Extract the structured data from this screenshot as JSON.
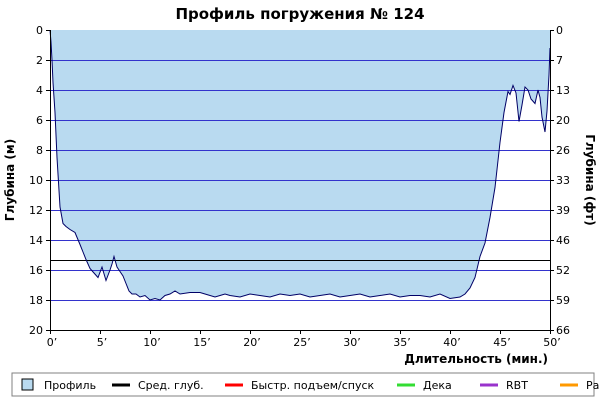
{
  "chart_data": {
    "type": "area",
    "title": "Профиль погружения № 124",
    "xlabel": "Длительность (мин.)",
    "ylabel_left": "Глубина (м)",
    "ylabel_right": "Глубина (фт)",
    "xlim": [
      0,
      50
    ],
    "ylim": [
      0,
      20
    ],
    "y_inverted": true,
    "x_ticks": [
      0,
      5,
      10,
      15,
      20,
      25,
      30,
      35,
      40,
      45,
      50
    ],
    "x_tick_labels": [
      "0’",
      "5’",
      "10’",
      "15’",
      "20’",
      "25’",
      "30’",
      "35’",
      "40’",
      "45’",
      "50’"
    ],
    "y_ticks": [
      0,
      2,
      4,
      6,
      8,
      10,
      12,
      14,
      16,
      18,
      20
    ],
    "y_tick_labels": [
      "0",
      "2",
      "4",
      "6",
      "8",
      "10",
      "12",
      "14",
      "16",
      "18",
      "20"
    ],
    "y_right_tick_labels": [
      "0",
      "7",
      "13",
      "20",
      "26",
      "33",
      "39",
      "46",
      "52",
      "59",
      "66"
    ],
    "grid": true,
    "average_depth": 15.35,
    "colors": {
      "profile_fill": "#b9daf0",
      "profile_line": "#000066",
      "grid": "#3333cc",
      "average": "#000000"
    },
    "series": [
      {
        "name": "Профиль",
        "x": [
          0,
          0.1,
          0.2,
          0.3,
          0.5,
          0.7,
          1.0,
          1.3,
          1.6,
          2.0,
          2.5,
          3.0,
          3.3,
          3.6,
          4.0,
          4.4,
          4.8,
          5.2,
          5.6,
          6.0,
          6.2,
          6.4,
          6.7,
          7.0,
          7.3,
          7.6,
          7.9,
          8.2,
          8.6,
          9.0,
          9.5,
          10.0,
          10.5,
          11.0,
          11.5,
          12.0,
          12.5,
          13.0,
          14.0,
          15.0,
          15.5,
          16.5,
          17.0,
          17.5,
          18.0,
          19.0,
          20.0,
          21.0,
          22.0,
          23.0,
          24.0,
          25.0,
          26.0,
          27.0,
          28.0,
          29.0,
          30.0,
          31.0,
          32.0,
          33.0,
          34.0,
          35.0,
          36.0,
          37.0,
          38.0,
          39.0,
          40.0,
          41.0,
          41.5,
          42.0,
          42.5,
          43.0,
          43.5,
          44.0,
          44.5,
          45.0,
          45.4,
          45.8,
          46.0,
          46.3,
          46.6,
          46.9,
          47.2,
          47.5,
          47.8,
          48.1,
          48.5,
          48.8,
          49.0,
          49.2,
          49.5,
          49.7,
          49.9,
          50.0
        ],
        "depth": [
          0,
          0.8,
          2.0,
          3.5,
          5.5,
          8.5,
          11.8,
          12.9,
          13.1,
          13.3,
          13.5,
          14.3,
          14.8,
          15.3,
          15.9,
          16.2,
          16.5,
          15.8,
          16.7,
          16.0,
          15.6,
          15.1,
          15.8,
          16.1,
          16.4,
          16.9,
          17.4,
          17.6,
          17.6,
          17.8,
          17.7,
          18.0,
          17.9,
          18.0,
          17.7,
          17.6,
          17.4,
          17.6,
          17.5,
          17.5,
          17.6,
          17.8,
          17.7,
          17.6,
          17.7,
          17.8,
          17.6,
          17.7,
          17.8,
          17.6,
          17.7,
          17.6,
          17.8,
          17.7,
          17.6,
          17.8,
          17.7,
          17.6,
          17.8,
          17.7,
          17.6,
          17.8,
          17.7,
          17.7,
          17.8,
          17.6,
          17.9,
          17.8,
          17.6,
          17.2,
          16.5,
          15.1,
          14.2,
          12.5,
          10.5,
          7.5,
          5.5,
          4.1,
          4.3,
          3.7,
          4.2,
          6.1,
          5.0,
          3.8,
          4.0,
          4.6,
          4.9,
          4.0,
          4.5,
          5.8,
          6.8,
          5.4,
          3.0,
          1.2,
          0
        ]
      }
    ],
    "legend": {
      "placement": "bottom",
      "items": [
        {
          "label": "Профиль",
          "kind": "box",
          "color": "#b9daf0"
        },
        {
          "label": "Сред. глуб.",
          "kind": "line",
          "color": "#000000"
        },
        {
          "label": "Быстр. подъем/спуск",
          "kind": "line",
          "color": "#ff0000"
        },
        {
          "label": "Дека",
          "kind": "line",
          "color": "#33dd33"
        },
        {
          "label": "RBT",
          "kind": "line",
          "color": "#9933cc"
        },
        {
          "label": "Раб.",
          "kind": "line",
          "color": "#ff9900"
        }
      ]
    }
  }
}
